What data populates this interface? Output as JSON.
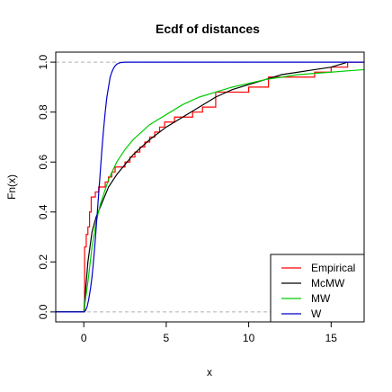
{
  "chart_data": {
    "type": "line",
    "title": "Ecdf of distances",
    "xlabel": "x",
    "ylabel": "Fn(x)",
    "xlim": [
      -1.7,
      17.0
    ],
    "ylim": [
      -0.04,
      1.04
    ],
    "x_ticks": [
      0,
      5,
      10,
      15
    ],
    "y_ticks": [
      0.0,
      0.2,
      0.4,
      0.6,
      0.8,
      1.0
    ],
    "reference_lines_y": [
      0.0,
      1.0
    ],
    "grid": false,
    "legend_position": "bottom-right",
    "series": [
      {
        "name": "Empirical",
        "kind": "step",
        "color": "#ff0000",
        "x": [
          -1.7,
          0.05,
          0.15,
          0.25,
          0.35,
          0.45,
          0.55,
          0.7,
          0.9,
          1.1,
          1.3,
          1.5,
          1.7,
          1.9,
          2.2,
          2.5,
          2.8,
          3.1,
          3.4,
          3.7,
          4.0,
          4.3,
          4.6,
          4.9,
          5.2,
          5.5,
          6.0,
          6.6,
          7.2,
          8.0,
          9.0,
          10.0,
          11.2,
          12.0,
          14.0,
          15.0,
          16.0,
          17.0
        ],
        "y": [
          0.0,
          0.26,
          0.31,
          0.34,
          0.4,
          0.46,
          0.46,
          0.48,
          0.5,
          0.5,
          0.52,
          0.54,
          0.56,
          0.58,
          0.58,
          0.6,
          0.62,
          0.64,
          0.66,
          0.68,
          0.7,
          0.72,
          0.74,
          0.76,
          0.76,
          0.78,
          0.78,
          0.8,
          0.82,
          0.88,
          0.88,
          0.9,
          0.94,
          0.94,
          0.96,
          0.98,
          1.0,
          1.0
        ]
      },
      {
        "name": "McMW",
        "kind": "line",
        "color": "#000000",
        "x": [
          -1.7,
          0.0,
          0.25,
          0.5,
          0.75,
          1.0,
          1.5,
          2.0,
          2.5,
          3.0,
          4.0,
          5.0,
          6.0,
          7.0,
          8.0,
          9.0,
          10.0,
          11.0,
          12.0,
          13.0,
          14.0,
          15.0,
          16.0
        ],
        "y": [
          0.0,
          0.0,
          0.2,
          0.32,
          0.38,
          0.42,
          0.5,
          0.55,
          0.59,
          0.63,
          0.69,
          0.74,
          0.78,
          0.82,
          0.86,
          0.89,
          0.91,
          0.93,
          0.95,
          0.96,
          0.97,
          0.98,
          1.0
        ]
      },
      {
        "name": "MW",
        "kind": "line",
        "color": "#00cc00",
        "x": [
          -1.7,
          0.0,
          0.25,
          0.5,
          0.75,
          1.0,
          1.5,
          2.0,
          2.5,
          3.0,
          4.0,
          5.0,
          6.0,
          7.0,
          8.0,
          9.0,
          10.0,
          11.0,
          12.0,
          13.0,
          14.0,
          15.0,
          16.0,
          17.0
        ],
        "y": [
          0.0,
          0.0,
          0.12,
          0.26,
          0.36,
          0.43,
          0.53,
          0.6,
          0.65,
          0.69,
          0.75,
          0.79,
          0.83,
          0.86,
          0.88,
          0.9,
          0.915,
          0.93,
          0.94,
          0.95,
          0.955,
          0.96,
          0.965,
          0.97
        ]
      },
      {
        "name": "W",
        "kind": "line",
        "color": "#0000cc",
        "x": [
          -1.7,
          0.0,
          0.1,
          0.2,
          0.3,
          0.4,
          0.5,
          0.6,
          0.7,
          0.8,
          0.9,
          1.0,
          1.1,
          1.2,
          1.3,
          1.4,
          1.5,
          1.6,
          1.7,
          1.8,
          1.9,
          2.0,
          2.2,
          2.5,
          17.0
        ],
        "y": [
          0.0,
          0.0,
          0.005,
          0.02,
          0.05,
          0.09,
          0.14,
          0.21,
          0.29,
          0.38,
          0.47,
          0.56,
          0.65,
          0.73,
          0.8,
          0.86,
          0.9,
          0.94,
          0.96,
          0.975,
          0.985,
          0.992,
          0.998,
          1.0,
          1.0
        ]
      }
    ]
  }
}
